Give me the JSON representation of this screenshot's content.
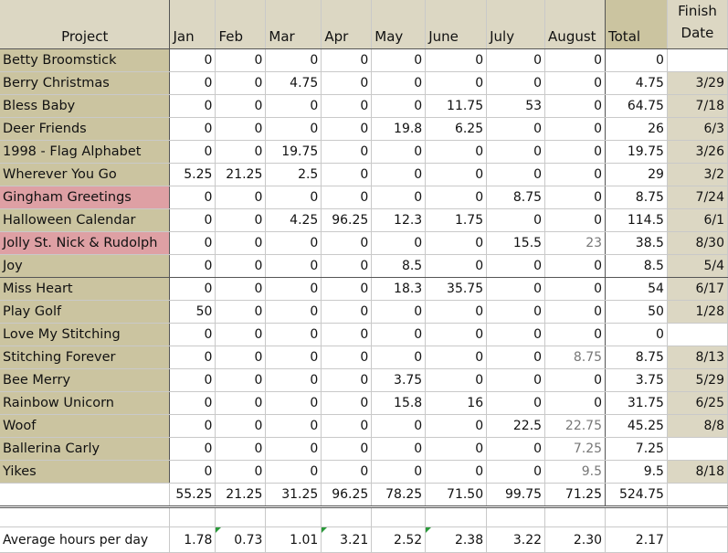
{
  "headers": {
    "project": "Project",
    "months": [
      "Jan",
      "Feb",
      "Mar",
      "Apr",
      "May",
      "June",
      "July",
      "August"
    ],
    "total": "Total",
    "finish_line1": "Finish",
    "finish_line2": "Date"
  },
  "rows": [
    {
      "name": "Betty Broomstick",
      "values": [
        "0",
        "0",
        "0",
        "0",
        "0",
        "0",
        "0",
        "0"
      ],
      "total": "0",
      "finish": ""
    },
    {
      "name": "Berry Christmas",
      "values": [
        "0",
        "0",
        "4.75",
        "0",
        "0",
        "0",
        "0",
        "0"
      ],
      "total": "4.75",
      "finish": "3/29"
    },
    {
      "name": "Bless Baby",
      "values": [
        "0",
        "0",
        "0",
        "0",
        "0",
        "11.75",
        "53",
        "0"
      ],
      "total": "64.75",
      "finish": "7/18"
    },
    {
      "name": "Deer Friends",
      "values": [
        "0",
        "0",
        "0",
        "0",
        "19.8",
        "6.25",
        "0",
        "0"
      ],
      "total": "26",
      "finish": "6/3"
    },
    {
      "name": "1998 - Flag Alphabet",
      "values": [
        "0",
        "0",
        "19.75",
        "0",
        "0",
        "0",
        "0",
        "0"
      ],
      "total": "19.75",
      "finish": "3/26"
    },
    {
      "name": "Wherever You Go",
      "values": [
        "5.25",
        "21.25",
        "2.5",
        "0",
        "0",
        "0",
        "0",
        "0"
      ],
      "total": "29",
      "finish": "3/2"
    },
    {
      "name": "Gingham Greetings",
      "values": [
        "0",
        "0",
        "0",
        "0",
        "0",
        "0",
        "8.75",
        "0"
      ],
      "total": "8.75",
      "finish": "7/24",
      "pink": true
    },
    {
      "name": "Halloween Calendar",
      "values": [
        "0",
        "0",
        "4.25",
        "96.25",
        "12.3",
        "1.75",
        "0",
        "0"
      ],
      "total": "114.5",
      "finish": "6/1"
    },
    {
      "name": "Jolly St. Nick & Rudolph",
      "values": [
        "0",
        "0",
        "0",
        "0",
        "0",
        "0",
        "15.5",
        "23"
      ],
      "total": "38.5",
      "finish": "8/30",
      "pink": true
    },
    {
      "name": "Joy",
      "values": [
        "0",
        "0",
        "0",
        "0",
        "8.5",
        "0",
        "0",
        "0"
      ],
      "total": "8.5",
      "finish": "5/4"
    },
    {
      "name": "Miss Heart",
      "values": [
        "0",
        "0",
        "0",
        "0",
        "18.3",
        "35.75",
        "0",
        "0"
      ],
      "total": "54",
      "finish": "6/17"
    },
    {
      "name": "Play Golf",
      "values": [
        "50",
        "0",
        "0",
        "0",
        "0",
        "0",
        "0",
        "0"
      ],
      "total": "50",
      "finish": "1/28"
    },
    {
      "name": "Love My Stitching",
      "values": [
        "0",
        "0",
        "0",
        "0",
        "0",
        "0",
        "0",
        "0"
      ],
      "total": "0",
      "finish": ""
    },
    {
      "name": "Stitching Forever",
      "values": [
        "0",
        "0",
        "0",
        "0",
        "0",
        "0",
        "0",
        "8.75"
      ],
      "total": "8.75",
      "finish": "8/13"
    },
    {
      "name": "Bee Merry",
      "values": [
        "0",
        "0",
        "0",
        "0",
        "3.75",
        "0",
        "0",
        "0"
      ],
      "total": "3.75",
      "finish": "5/29"
    },
    {
      "name": "Rainbow Unicorn",
      "values": [
        "0",
        "0",
        "0",
        "0",
        "15.8",
        "16",
        "0",
        "0"
      ],
      "total": "31.75",
      "finish": "6/25"
    },
    {
      "name": "Woof",
      "values": [
        "0",
        "0",
        "0",
        "0",
        "0",
        "0",
        "22.5",
        "22.75"
      ],
      "total": "45.25",
      "finish": "8/8"
    },
    {
      "name": "Ballerina Carly",
      "values": [
        "0",
        "0",
        "0",
        "0",
        "0",
        "0",
        "0",
        "7.25"
      ],
      "total": "7.25",
      "finish": ""
    },
    {
      "name": "Yikes",
      "values": [
        "0",
        "0",
        "0",
        "0",
        "0",
        "0",
        "0",
        "9.5"
      ],
      "total": "9.5",
      "finish": "8/18"
    }
  ],
  "totals": {
    "values": [
      "55.25",
      "21.25",
      "31.25",
      "96.25",
      "78.25",
      "71.50",
      "99.75",
      "71.25"
    ],
    "total": "524.75"
  },
  "average": {
    "label": "Average hours per day",
    "values": [
      "1.78",
      "0.73",
      "1.01",
      "3.21",
      "2.52",
      "2.38",
      "3.22",
      "2.30"
    ],
    "total": "2.17"
  }
}
